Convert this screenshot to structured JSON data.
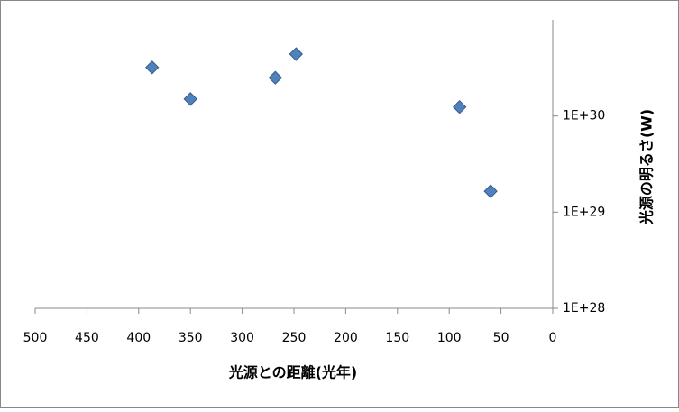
{
  "chart_data": {
    "type": "scatter",
    "x_label": "光源との距離(光年)",
    "y_label": "光源の明るさ(W)",
    "x": [
      387,
      350,
      268,
      248,
      90,
      60
    ],
    "series": [
      {
        "color": "#4f81bd",
        "values": [
          3.2e+30,
          1.5e+30,
          2.5e+30,
          4.4e+30,
          1.24e+30,
          1.65e+29
        ]
      }
    ],
    "xlim": [
      500,
      0
    ],
    "xticks": [
      500,
      450,
      400,
      350,
      300,
      250,
      200,
      150,
      100,
      50,
      0
    ],
    "ylim": [
      1e+28,
      1e+31
    ],
    "yticks": [
      {
        "value": 1e+28,
        "label": "1E+28"
      },
      {
        "value": 1e+29,
        "label": "1E+29"
      },
      {
        "value": 1e+30,
        "label": "1E+30"
      }
    ],
    "y_log": true,
    "y_axis_side": "right"
  }
}
